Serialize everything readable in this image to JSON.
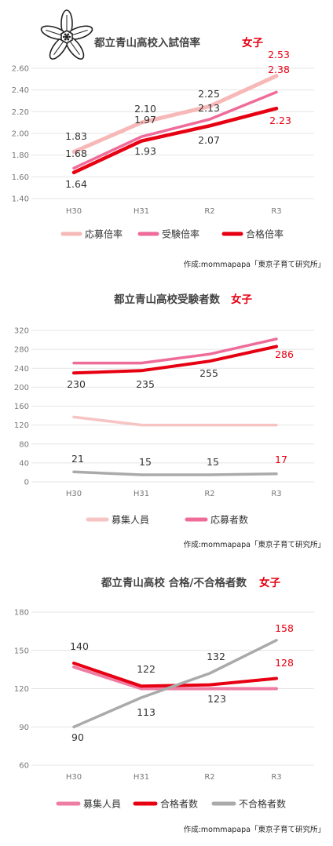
{
  "credit": "作成:mommapapa「東京子育て研究所」",
  "chart_data": [
    {
      "type": "line",
      "title": "都立青山高校入試倍率",
      "title_suffix": "女子",
      "categories": [
        "H30",
        "H31",
        "R2",
        "R3"
      ],
      "ylim": [
        1.4,
        2.6
      ],
      "yticks": [
        "1.40",
        "1.60",
        "1.80",
        "2.00",
        "2.20",
        "2.40",
        "2.60"
      ],
      "grid": true,
      "legend_position": "bottom",
      "series": [
        {
          "name": "応募倍率",
          "values": [
            1.83,
            2.1,
            2.25,
            2.53
          ],
          "color": "#f7b8b8",
          "labels": [
            "1.83",
            "2.10",
            "2.25",
            "2.53"
          ]
        },
        {
          "name": "受験倍率",
          "values": [
            1.68,
            1.97,
            2.13,
            2.38
          ],
          "color": "#ef6b9a",
          "labels": [
            "1.68",
            "1.97",
            "2.13",
            "2.38"
          ]
        },
        {
          "name": "合格倍率",
          "values": [
            1.64,
            1.93,
            2.07,
            2.23
          ],
          "color": "#e60012",
          "labels": [
            "1.64",
            "1.93",
            "2.07",
            "2.23"
          ]
        }
      ]
    },
    {
      "type": "line",
      "title": "都立青山高校受験者数",
      "title_suffix": "女子",
      "categories": [
        "H30",
        "H31",
        "R2",
        "R3"
      ],
      "ylim": [
        0,
        320
      ],
      "yticks": [
        "0",
        "40",
        "80",
        "120",
        "160",
        "200",
        "240",
        "280",
        "320"
      ],
      "grid": true,
      "legend_position": "bottom",
      "series": [
        {
          "name": "募集人員",
          "values": [
            137,
            120,
            120,
            120
          ],
          "color": "#f7c4c4",
          "labels": []
        },
        {
          "name": "応募者数",
          "values": [
            251,
            251,
            270,
            302
          ],
          "color": "#ef6b9a",
          "labels": []
        },
        {
          "name": "",
          "values": [
            230,
            235,
            255,
            286
          ],
          "color": "#e60012",
          "labels": [
            "230",
            "235",
            "255",
            "286"
          ]
        },
        {
          "name": "",
          "values": [
            21,
            15,
            15,
            17
          ],
          "color": "#aaaaaa",
          "labels": [
            "21",
            "15",
            "15",
            "17"
          ]
        }
      ]
    },
    {
      "type": "line",
      "title": "都立青山高校 合格/不合格者数",
      "title_suffix": "女子",
      "categories": [
        "H30",
        "H31",
        "R2",
        "R3"
      ],
      "ylim": [
        60,
        180
      ],
      "yticks": [
        "60",
        "90",
        "120",
        "150",
        "180"
      ],
      "grid": true,
      "legend_position": "bottom",
      "series": [
        {
          "name": "募集人員",
          "values": [
            137,
            120,
            120,
            120
          ],
          "color": "#ef7da3",
          "labels": []
        },
        {
          "name": "合格者数",
          "values": [
            140,
            122,
            123,
            128
          ],
          "color": "#e60012",
          "labels": [
            "140",
            "122",
            "123",
            "128"
          ]
        },
        {
          "name": "不合格者数",
          "values": [
            90,
            113,
            132,
            158
          ],
          "color": "#aaaaaa",
          "labels": [
            "90",
            "113",
            "132",
            "158"
          ]
        }
      ]
    }
  ]
}
